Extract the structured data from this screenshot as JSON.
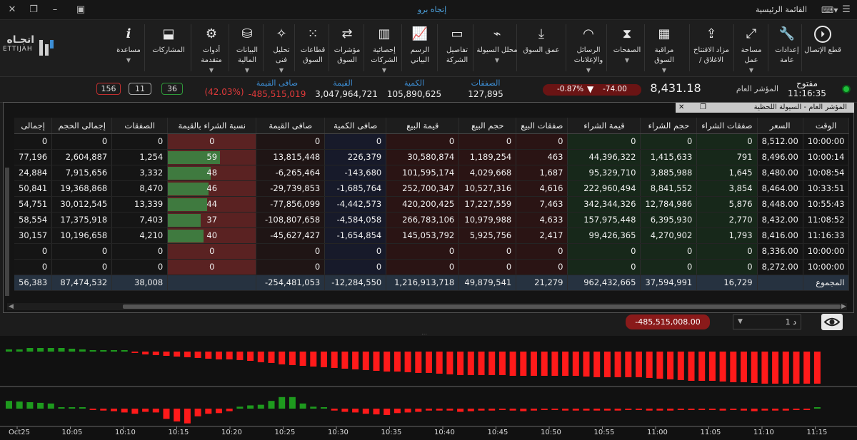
{
  "titlebar": {
    "app_title": "إتجاه برو",
    "menu_title": "القائمة الرئيسية"
  },
  "toolbar": [
    {
      "name": "disconnect",
      "label1": "قطع الإتصال",
      "label2": "",
      "icon": "power-arrow-icon",
      "caret": false
    },
    {
      "name": "settings",
      "label1": "إعدادات",
      "label2": "عامة",
      "icon": "wrench-icon",
      "caret": false
    },
    {
      "name": "workspace",
      "label1": "مساحة",
      "label2": "عمل",
      "icon": "expand-icon",
      "caret": true
    },
    {
      "name": "auction",
      "label1": "مزاد الافتتاح",
      "label2": "/ الاغلاق",
      "icon": "share-icon",
      "caret": false
    },
    {
      "name": "watch",
      "label1": "مراقبة",
      "label2": "السوق",
      "icon": "grid-icon",
      "caret": true
    },
    {
      "name": "pages",
      "label1": "الصفحات",
      "label2": "",
      "icon": "filter-icon",
      "caret": true
    },
    {
      "name": "messages",
      "label1": "الرسائل",
      "label2": "والإعلانات",
      "icon": "rss-icon",
      "caret": true
    },
    {
      "name": "depth",
      "label1": "عمق السوق",
      "label2": "",
      "icon": "download-icon",
      "caret": false
    },
    {
      "name": "liquidity",
      "label1": "محلل السيولة",
      "label2": "",
      "icon": "pulse-icon",
      "caret": true
    },
    {
      "name": "company",
      "label1": "تفاصيل",
      "label2": "الشركة",
      "icon": "window-icon",
      "caret": false
    },
    {
      "name": "chart",
      "label1": "الرسم",
      "label2": "البياني",
      "icon": "line-chart-icon",
      "caret": false
    },
    {
      "name": "stats",
      "label1": "إحصائية",
      "label2": "الشركات",
      "icon": "bar-chart-icon",
      "caret": true
    },
    {
      "name": "indices",
      "label1": "مؤشرات",
      "label2": "السوق",
      "icon": "shuffle-icon",
      "caret": false
    },
    {
      "name": "sectors",
      "label1": "قطاعات",
      "label2": "السوق",
      "icon": "dots-grid-icon",
      "caret": false
    },
    {
      "name": "tech",
      "label1": "تحليل",
      "label2": "فنى",
      "icon": "sparkle-icon",
      "caret": true
    },
    {
      "name": "financial",
      "label1": "البيانات",
      "label2": "المالية",
      "icon": "coins-icon",
      "caret": true
    },
    {
      "name": "tools",
      "label1": "أدوات",
      "label2": "متقدمة",
      "icon": "tools-icon",
      "caret": true
    },
    {
      "name": "contributions",
      "label1": "المشاركات",
      "label2": "",
      "icon": "inbox-icon",
      "caret": false
    },
    {
      "name": "help",
      "label1": "مساعدة",
      "label2": "",
      "icon": "info-icon",
      "caret": true
    }
  ],
  "logo": {
    "arabic": "اتجـاه",
    "latin": "ETTIJAH"
  },
  "status": {
    "open": "مفتوح",
    "time": "11:16:35",
    "index_label": "المؤشر العام",
    "index_value": "8,431.18",
    "change": "-74.00",
    "change_pct": "-0.87%",
    "deals_label": "الصفقات",
    "deals": "127,895",
    "qty_label": "الكمية",
    "qty": "105,890,625",
    "value_label": "القيمة",
    "value": "3,047,964,721",
    "net_label": "صافى القيمة",
    "net": "-485,515,019",
    "net_pct": "(42.03%)",
    "up": "36",
    "flat": "11",
    "down": "156"
  },
  "panel": {
    "title": "المؤشر العام - السيولة اللحظية"
  },
  "columns": [
    "الوقت",
    "السعر",
    "صفقات الشراء",
    "حجم الشراء",
    "قيمة الشراء",
    "صفقات البيع",
    "حجم البيع",
    "قيمة البيع",
    "صافى الكمية",
    "صافى القيمة",
    "نسبة الشراء بالقيمة",
    "الصفقات",
    "إجمالى الحجم",
    "إجمالى"
  ],
  "rows": [
    [
      "10:00:00",
      "8,512.00",
      "0",
      "0",
      "0",
      "0",
      "0",
      "0",
      "0",
      "0",
      "0",
      "0",
      "0",
      "0"
    ],
    [
      "10:00:14",
      "8,496.00",
      "791",
      "1,415,633",
      "44,396,322",
      "463",
      "1,189,254",
      "30,580,874",
      "226,379",
      "13,815,448",
      "59",
      "1,254",
      "2,604,887",
      "77,196"
    ],
    [
      "10:08:54",
      "8,480.00",
      "1,645",
      "3,885,988",
      "95,329,710",
      "1,687",
      "4,029,668",
      "101,595,174",
      "-143,680",
      "-6,265,464",
      "48",
      "3,332",
      "7,915,656",
      "24,884"
    ],
    [
      "10:33:51",
      "8,464.00",
      "3,854",
      "8,841,552",
      "222,960,494",
      "4,616",
      "10,527,316",
      "252,700,347",
      "-1,685,764",
      "-29,739,853",
      "46",
      "8,470",
      "19,368,868",
      "50,841"
    ],
    [
      "10:55:43",
      "8,448.00",
      "5,876",
      "12,784,986",
      "342,344,326",
      "7,463",
      "17,227,559",
      "420,200,425",
      "-4,442,573",
      "-77,856,099",
      "44",
      "13,339",
      "30,012,545",
      "54,751"
    ],
    [
      "11:08:52",
      "8,432.00",
      "2,770",
      "6,395,930",
      "157,975,448",
      "4,633",
      "10,979,988",
      "266,783,106",
      "-4,584,058",
      "-108,807,658",
      "37",
      "7,403",
      "17,375,918",
      "58,554"
    ],
    [
      "11:16:33",
      "8,416.00",
      "1,793",
      "4,270,902",
      "99,426,365",
      "2,417",
      "5,925,756",
      "145,053,792",
      "-1,654,854",
      "-45,627,427",
      "40",
      "4,210",
      "10,196,658",
      "30,157"
    ],
    [
      "10:00:00",
      "8,336.00",
      "0",
      "0",
      "0",
      "0",
      "0",
      "0",
      "0",
      "0",
      "0",
      "0",
      "0",
      "0"
    ],
    [
      "10:00:00",
      "8,272.00",
      "0",
      "0",
      "0",
      "0",
      "0",
      "0",
      "0",
      "0",
      "0",
      "0",
      "0",
      "0"
    ]
  ],
  "total": [
    "المجموع",
    "",
    "16,729",
    "37,594,991",
    "962,432,665",
    "21,279",
    "49,879,541",
    "1,216,913,718",
    "-12,284,550",
    "-254,481,053",
    "",
    "38,008",
    "87,474,532",
    "56,383"
  ],
  "bottom": {
    "net_value": "-485,515,008.00",
    "period": "1 د"
  },
  "chart_data": {
    "type": "bar",
    "x_ticks": [
      "Oct25",
      "10:05",
      "10:10",
      "10:15",
      "10:20",
      "10:25",
      "10:30",
      "10:35",
      "10:40",
      "10:45",
      "10:50",
      "10:55",
      "11:00",
      "11:05",
      "11:10",
      "11:15"
    ],
    "series": [
      {
        "values": [
          0.3,
          0.3,
          0.5,
          0.5,
          0.5,
          0.5,
          0.4,
          0.3,
          0.2,
          0.2,
          0.1,
          0.1,
          -0.2,
          -0.4,
          -0.5,
          -0.6,
          -0.7,
          -0.8,
          -0.9,
          -1,
          -1.1,
          -1.1,
          -1.2,
          -1.3,
          -1.5,
          -1.6,
          -1.8,
          -1.9,
          -2,
          -2.1,
          -2.2,
          -2.3,
          -2.4,
          -2.5,
          -2.6,
          -2.7,
          -2.8,
          -2.8,
          -2.9,
          -3,
          -3.0,
          -3.1,
          -3.2,
          -3.3,
          -3.3,
          -3.3,
          -3.3,
          -3.3,
          -3.4,
          -3.4,
          -3.4,
          -3.4,
          -3.4,
          -3.4,
          -3.4,
          -3.5,
          -3.6,
          -3.6,
          -3.6,
          -3.6,
          -3.6,
          -3.7,
          -3.8,
          -3.9,
          -4.0,
          -4.1,
          -4.1,
          -4.1,
          -4.2,
          -4.3,
          -4.3,
          -4.4,
          -4.5,
          -4.5,
          -4.5,
          -4.5,
          -4.5,
          -4.5
        ]
      },
      {
        "values": [
          1.2,
          1.1,
          1.0,
          0.9,
          0.8,
          0.2,
          0,
          0,
          -0.2,
          -0.3,
          -0.4,
          -0.6,
          -0.8,
          -0.5,
          -0.6,
          -1.6,
          -2.0,
          -2.3,
          -1.2,
          -0.8,
          -0.7,
          -0.4,
          0.3,
          0.5,
          0.6,
          1.2,
          1.8,
          1.8,
          0.8,
          0.3,
          0.2,
          -0.3,
          -0.5,
          -0.6,
          -0.8,
          -0.9,
          -1.0,
          -0.7,
          -0.6,
          -0.5,
          -0.3,
          -0.3,
          -0.3,
          -0.5,
          -0.4,
          -0.3,
          -0.3,
          -0.2,
          -0.3,
          -0.4,
          -0.3,
          -0.2,
          -0.2,
          -0.3,
          -0.3,
          -0.3,
          -0.3,
          -0.3,
          -0.3,
          -0.2,
          -0.2,
          -0.3,
          -0.3,
          -0.3,
          -0.2,
          -0.2,
          -0.2,
          -0.2,
          -0.3,
          -0.2,
          -0.3,
          -0.4,
          -0.3,
          -0.3,
          -0.3,
          -0.2,
          -0.2,
          0.2
        ]
      }
    ]
  }
}
